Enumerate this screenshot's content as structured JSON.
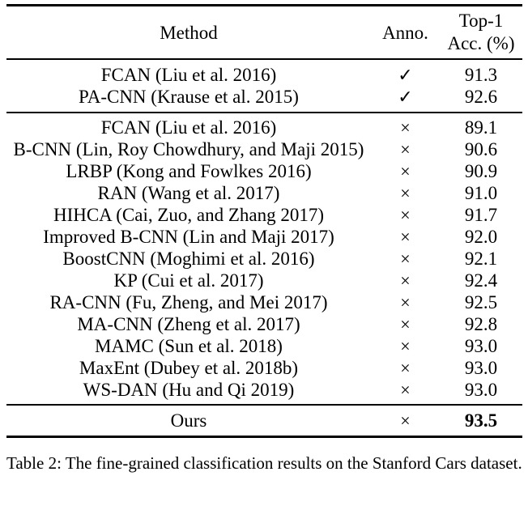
{
  "colors": {
    "text": "#000000",
    "background": "#ffffff",
    "rule": "#000000"
  },
  "table": {
    "header": {
      "method": "Method",
      "anno": "Anno.",
      "acc_line1": "Top-1",
      "acc_line2": "Acc. (%)"
    },
    "groups": [
      {
        "rows": [
          {
            "method": "FCAN (Liu et al. 2016)",
            "anno": "✓",
            "acc": "91.3"
          },
          {
            "method": "PA-CNN (Krause et al. 2015)",
            "anno": "✓",
            "acc": "92.6"
          }
        ]
      },
      {
        "rows": [
          {
            "method": "FCAN (Liu et al. 2016)",
            "anno": "×",
            "acc": "89.1"
          },
          {
            "method": "B-CNN (Lin, Roy Chowdhury, and Maji 2015)",
            "anno": "×",
            "acc": "90.6"
          },
          {
            "method": "LRBP (Kong and Fowlkes 2016)",
            "anno": "×",
            "acc": "90.9"
          },
          {
            "method": "RAN (Wang et al. 2017)",
            "anno": "×",
            "acc": "91.0"
          },
          {
            "method": "HIHCA (Cai, Zuo, and Zhang 2017)",
            "anno": "×",
            "acc": "91.7"
          },
          {
            "method": "Improved B-CNN (Lin and Maji 2017)",
            "anno": "×",
            "acc": "92.0"
          },
          {
            "method": "BoostCNN (Moghimi et al. 2016)",
            "anno": "×",
            "acc": "92.1"
          },
          {
            "method": "KP (Cui et al. 2017)",
            "anno": "×",
            "acc": "92.4"
          },
          {
            "method": "RA-CNN (Fu, Zheng, and Mei 2017)",
            "anno": "×",
            "acc": "92.5"
          },
          {
            "method": "MA-CNN (Zheng et al. 2017)",
            "anno": "×",
            "acc": "92.8"
          },
          {
            "method": "MAMC (Sun et al. 2018)",
            "anno": "×",
            "acc": "93.0"
          },
          {
            "method": "MaxEnt (Dubey et al. 2018b)",
            "anno": "×",
            "acc": "93.0"
          },
          {
            "method": "WS-DAN (Hu and Qi 2019)",
            "anno": "×",
            "acc": "93.0"
          }
        ]
      },
      {
        "rows": [
          {
            "method": "Ours",
            "anno": "×",
            "acc": "93.5"
          }
        ]
      }
    ]
  },
  "caption": "Table 2: The fine-grained classification results on the Stanford Cars dataset."
}
